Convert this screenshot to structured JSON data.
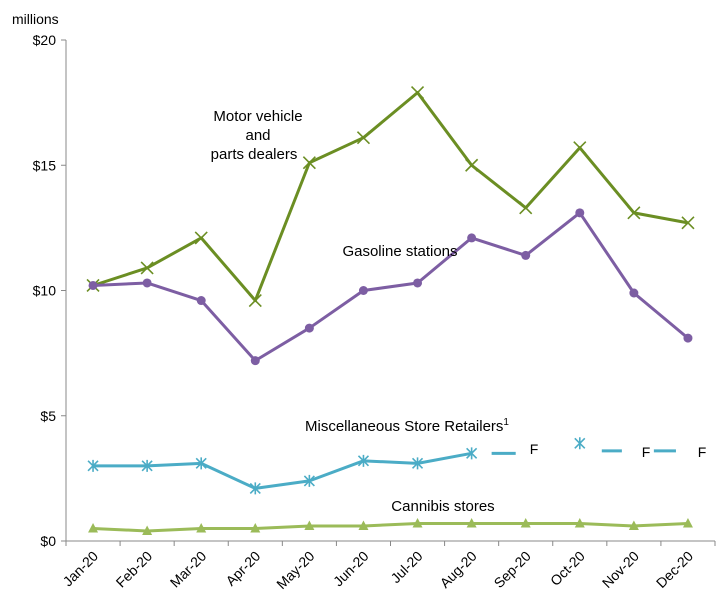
{
  "chart_data": {
    "type": "line",
    "units_label": "millions",
    "categories": [
      "Jan-20",
      "Feb-20",
      "Mar-20",
      "Apr-20",
      "May-20",
      "Jun-20",
      "Jul-20",
      "Aug-20",
      "Sep-20",
      "Oct-20",
      "Nov-20",
      "Dec-20"
    ],
    "y_ticks": [
      "$0",
      "$5",
      "$10",
      "$15",
      "$20"
    ],
    "ylim": [
      0,
      20
    ],
    "grid": false,
    "series": [
      {
        "name_lines": [
          "Motor vehicle",
          "and",
          "parts dealers"
        ],
        "color": "#6b8e23",
        "marker": "x",
        "values": [
          10.2,
          10.9,
          12.1,
          9.6,
          15.1,
          16.1,
          17.9,
          15.0,
          13.3,
          15.7,
          13.1,
          12.7
        ]
      },
      {
        "name": "Gasoline stations",
        "color": "#7d5ea3",
        "marker": "circle",
        "values": [
          10.2,
          10.3,
          9.6,
          7.2,
          8.5,
          10.0,
          10.3,
          12.1,
          11.4,
          13.1,
          9.9,
          8.1
        ]
      },
      {
        "name": "Miscellaneous Store Retailers",
        "name_superscript": "1",
        "color": "#4bacc6",
        "marker": "asterisk",
        "values": [
          3.0,
          3.0,
          3.1,
          2.1,
          2.4,
          3.2,
          3.1,
          3.5,
          null,
          3.9,
          null,
          null
        ],
        "flags": [
          "F",
          "F",
          "F"
        ]
      },
      {
        "name": "Cannibis stores",
        "color": "#9bbb59",
        "marker": "triangle",
        "values": [
          0.5,
          0.4,
          0.5,
          0.5,
          0.6,
          0.6,
          0.7,
          0.7,
          0.7,
          0.7,
          0.6,
          0.7
        ]
      }
    ]
  }
}
